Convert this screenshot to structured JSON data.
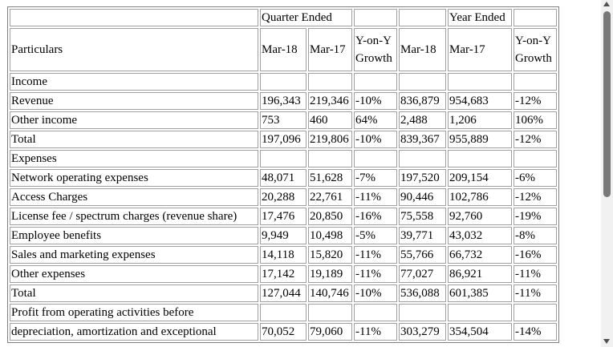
{
  "header": {
    "group_quarter": "Quarter Ended",
    "group_year": "Year Ended",
    "particulars": "Particulars",
    "q_mar18": "Mar-18",
    "q_mar17": "Mar-17",
    "q_growth_line1": "Y-on-Y",
    "q_growth_line2": "Growth",
    "y_mar18": "Mar-18",
    "y_mar17": "Mar-17",
    "y_growth_line1": "Y-on-Y",
    "y_growth_line2": "Growth"
  },
  "rows": [
    {
      "label": "Income",
      "section": true
    },
    {
      "label": "Revenue",
      "values": [
        "196,343",
        "219,346",
        "-10%",
        "836,879",
        "954,683",
        "-12%"
      ]
    },
    {
      "label": "Other income",
      "values": [
        "753",
        "460",
        "64%",
        "2,488",
        "1,206",
        "106%"
      ]
    },
    {
      "label": "Total",
      "values": [
        "197,096",
        "219,806",
        "-10%",
        "839,367",
        "955,889",
        "-12%"
      ]
    },
    {
      "label": "Expenses",
      "section": true
    },
    {
      "label": "Network operating expenses",
      "values": [
        "48,071",
        "51,628",
        "-7%",
        "197,520",
        "209,154",
        "-6%"
      ]
    },
    {
      "label": "Access Charges",
      "values": [
        "20,288",
        "22,761",
        "-11%",
        "90,446",
        "102,786",
        "-12%"
      ]
    },
    {
      "label": "License fee / spectrum charges (revenue share)",
      "values": [
        "17,476",
        "20,850",
        "-16%",
        "75,558",
        "92,760",
        "-19%"
      ]
    },
    {
      "label": "Employee benefits",
      "values": [
        "9,949",
        "10,498",
        "-5%",
        "39,771",
        "43,032",
        "-8%"
      ]
    },
    {
      "label": "Sales and marketing expenses",
      "values": [
        "14,118",
        "15,820",
        "-11%",
        "55,766",
        "66,732",
        "-16%"
      ]
    },
    {
      "label": "Other expenses",
      "values": [
        "17,142",
        "19,189",
        "-11%",
        "77,027",
        "86,921",
        "-11%"
      ]
    },
    {
      "label": "Total",
      "values": [
        "127,044",
        "140,746",
        "-10%",
        "536,088",
        "601,385",
        "-11%"
      ]
    },
    {
      "label": "Profit from operating activities before",
      "section": true
    },
    {
      "label": "depreciation, amortization and exceptional",
      "values": [
        "70,052",
        "79,060",
        "-11%",
        "303,279",
        "354,504",
        "-14%"
      ]
    }
  ]
}
